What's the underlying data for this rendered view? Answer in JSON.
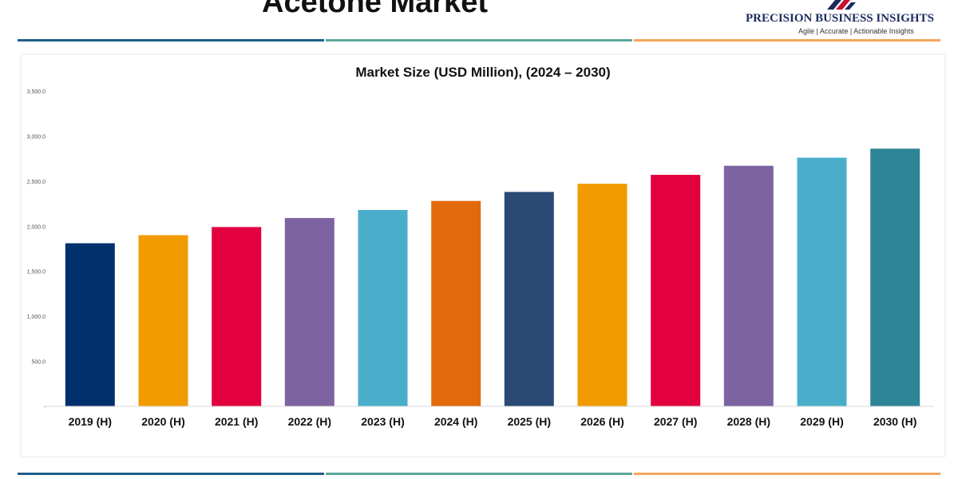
{
  "header": {
    "title": "Acetone Market",
    "logo_name": "PRECISION BUSINESS INSIGHTS",
    "logo_tagline": "Agile | Accurate | Actionable Insights"
  },
  "colors": {
    "rule_blue": "#1f5f8b",
    "rule_teal": "#5aa89a",
    "rule_orange": "#f2a65a",
    "logo_navy": "#1d2a5c",
    "logo_red": "#c8102e"
  },
  "chart_data": {
    "type": "bar",
    "title": "Market Size (USD Million), (2024 – 2030)",
    "xlabel": "",
    "ylabel": "",
    "ylim": [
      0,
      3500
    ],
    "yticks": [
      {
        "value": 0,
        "label": "-"
      },
      {
        "value": 500,
        "label": "500.0"
      },
      {
        "value": 1000,
        "label": "1,000.0"
      },
      {
        "value": 1500,
        "label": "1,500.0"
      },
      {
        "value": 2000,
        "label": "2,000.0"
      },
      {
        "value": 2500,
        "label": "2,500.0"
      },
      {
        "value": 3000,
        "label": "3,000.0"
      },
      {
        "value": 3500,
        "label": "3,500.0"
      }
    ],
    "grid": false,
    "legend": "none",
    "categories": [
      "2019 (H)",
      "2020 (H)",
      "2021 (H)",
      "2022 (H)",
      "2023 (H)",
      "2024 (H)",
      "2025 (H)",
      "2026 (H)",
      "2027 (H)",
      "2028 (H)",
      "2029 (H)",
      "2030 (H)"
    ],
    "values": [
      1810,
      1900,
      1990,
      2090,
      2180,
      2280,
      2380,
      2470,
      2570,
      2670,
      2760,
      2860
    ],
    "bar_colors": [
      "#00316c",
      "#f29b00",
      "#e2003f",
      "#7d63a1",
      "#4aaecb",
      "#e26a0a",
      "#2a4a75",
      "#f29b00",
      "#e2003f",
      "#7d63a1",
      "#4aaecb",
      "#2e8597"
    ]
  }
}
